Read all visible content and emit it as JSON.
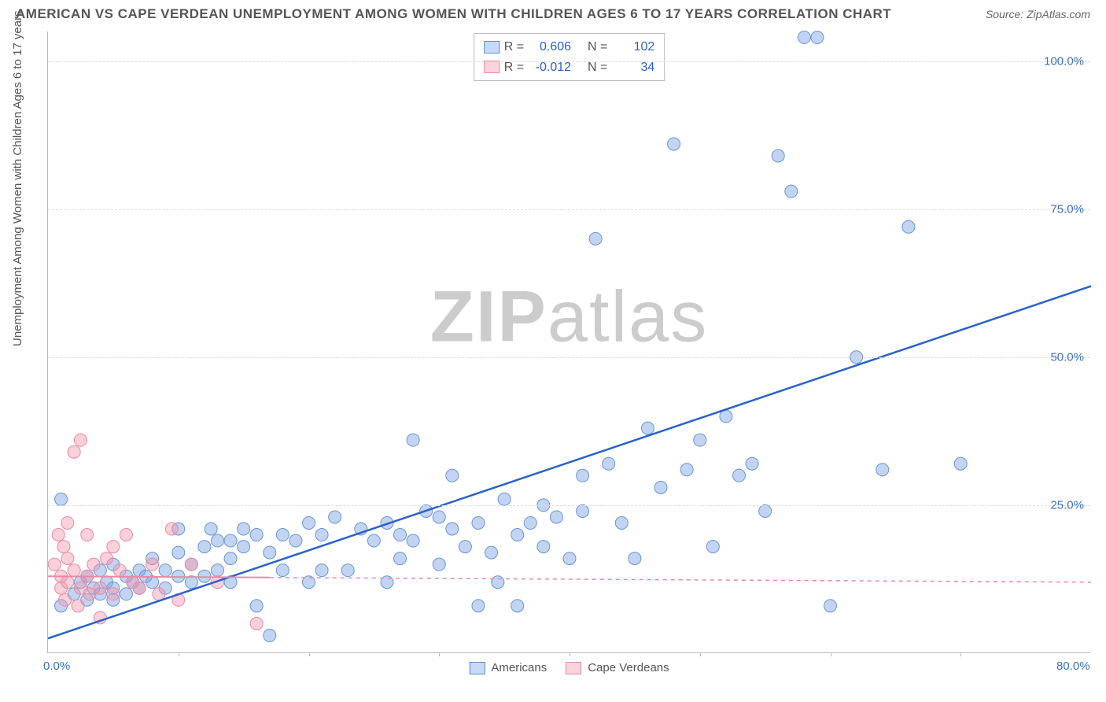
{
  "title": "AMERICAN VS CAPE VERDEAN UNEMPLOYMENT AMONG WOMEN WITH CHILDREN AGES 6 TO 17 YEARS CORRELATION CHART",
  "source_label": "Source: ",
  "source_value": "ZipAtlas.com",
  "y_axis_label": "Unemployment Among Women with Children Ages 6 to 17 years",
  "watermark_a": "ZIP",
  "watermark_b": "atlas",
  "chart": {
    "type": "scatter",
    "xlim": [
      0,
      80
    ],
    "ylim": [
      0,
      105
    ],
    "x_ticks": [
      0,
      80
    ],
    "x_tick_labels": [
      "0.0%",
      "80.0%"
    ],
    "x_minor_ticks": [
      10,
      20,
      30,
      40,
      50,
      60,
      70
    ],
    "y_ticks": [
      25,
      50,
      75,
      100
    ],
    "y_tick_labels": [
      "25.0%",
      "50.0%",
      "75.0%",
      "100.0%"
    ],
    "background_color": "#ffffff",
    "grid_color": "#dddddd",
    "axis_color": "#bbbbbb",
    "tick_label_color": "#3b6fc7",
    "series": [
      {
        "name": "Americans",
        "color_fill": "rgba(120,160,225,0.45)",
        "color_stroke": "#6a95d6",
        "marker_radius": 8,
        "regression": {
          "x1": 0,
          "y1": 2.5,
          "x2": 80,
          "y2": 62,
          "color": "#2a62c9",
          "width": 2.5,
          "dash": "none"
        },
        "R": "0.606",
        "N": "102",
        "points": [
          [
            1,
            8
          ],
          [
            1,
            26
          ],
          [
            2,
            10
          ],
          [
            2.5,
            12
          ],
          [
            3,
            9
          ],
          [
            3,
            13
          ],
          [
            3.5,
            11
          ],
          [
            4,
            10
          ],
          [
            4,
            14
          ],
          [
            4.5,
            12
          ],
          [
            5,
            9
          ],
          [
            5,
            11
          ],
          [
            5,
            15
          ],
          [
            6,
            10
          ],
          [
            6,
            13
          ],
          [
            6.5,
            12
          ],
          [
            7,
            11
          ],
          [
            7,
            14
          ],
          [
            7.5,
            13
          ],
          [
            8,
            12
          ],
          [
            8,
            16
          ],
          [
            9,
            11
          ],
          [
            9,
            14
          ],
          [
            10,
            13
          ],
          [
            10,
            17
          ],
          [
            10,
            21
          ],
          [
            11,
            12
          ],
          [
            11,
            15
          ],
          [
            12,
            13
          ],
          [
            12,
            18
          ],
          [
            12.5,
            21
          ],
          [
            13,
            14
          ],
          [
            13,
            19
          ],
          [
            14,
            12
          ],
          [
            14,
            16
          ],
          [
            14,
            19
          ],
          [
            15,
            18
          ],
          [
            15,
            21
          ],
          [
            16,
            20
          ],
          [
            16,
            8
          ],
          [
            17,
            3
          ],
          [
            17,
            17
          ],
          [
            18,
            14
          ],
          [
            18,
            20
          ],
          [
            19,
            19
          ],
          [
            20,
            22
          ],
          [
            20,
            12
          ],
          [
            21,
            14
          ],
          [
            21,
            20
          ],
          [
            22,
            23
          ],
          [
            23,
            14
          ],
          [
            24,
            21
          ],
          [
            25,
            19
          ],
          [
            26,
            12
          ],
          [
            26,
            22
          ],
          [
            27,
            16
          ],
          [
            27,
            20
          ],
          [
            28,
            36
          ],
          [
            28,
            19
          ],
          [
            29,
            24
          ],
          [
            30,
            23
          ],
          [
            30,
            15
          ],
          [
            31,
            21
          ],
          [
            31,
            30
          ],
          [
            32,
            18
          ],
          [
            33,
            8
          ],
          [
            33,
            22
          ],
          [
            34,
            17
          ],
          [
            34.5,
            12
          ],
          [
            35,
            26
          ],
          [
            36,
            8
          ],
          [
            36,
            20
          ],
          [
            37,
            22
          ],
          [
            38,
            18
          ],
          [
            38,
            25
          ],
          [
            39,
            23
          ],
          [
            40,
            16
          ],
          [
            41,
            30
          ],
          [
            41,
            24
          ],
          [
            42,
            70
          ],
          [
            43,
            32
          ],
          [
            44,
            22
          ],
          [
            45,
            16
          ],
          [
            46,
            38
          ],
          [
            47,
            28
          ],
          [
            48,
            86
          ],
          [
            49,
            31
          ],
          [
            50,
            36
          ],
          [
            51,
            18
          ],
          [
            52,
            40
          ],
          [
            53,
            30
          ],
          [
            54,
            32
          ],
          [
            55,
            24
          ],
          [
            56,
            84
          ],
          [
            57,
            78
          ],
          [
            58,
            104
          ],
          [
            59,
            104
          ],
          [
            60,
            8
          ],
          [
            62,
            50
          ],
          [
            64,
            31
          ],
          [
            66,
            72
          ],
          [
            70,
            32
          ]
        ]
      },
      {
        "name": "Cape Verdeans",
        "color_fill": "rgba(245,150,175,0.45)",
        "color_stroke": "#e88aa5",
        "marker_radius": 8,
        "regression": {
          "x1": 0,
          "y1": 13,
          "x2": 80,
          "y2": 12,
          "color": "#e88aa5",
          "width": 1.5,
          "dash": "5,5",
          "solid_until_x": 17
        },
        "R": "-0.012",
        "N": "34",
        "points": [
          [
            0.5,
            15
          ],
          [
            0.8,
            20
          ],
          [
            1,
            11
          ],
          [
            1,
            13
          ],
          [
            1.2,
            18
          ],
          [
            1.3,
            9
          ],
          [
            1.5,
            12
          ],
          [
            1.5,
            16
          ],
          [
            1.5,
            22
          ],
          [
            2,
            14
          ],
          [
            2,
            34
          ],
          [
            2.3,
            8
          ],
          [
            2.5,
            36
          ],
          [
            2.5,
            11
          ],
          [
            3,
            20
          ],
          [
            3,
            13
          ],
          [
            3.2,
            10
          ],
          [
            3.5,
            15
          ],
          [
            4,
            6
          ],
          [
            4,
            11
          ],
          [
            4.5,
            16
          ],
          [
            5,
            18
          ],
          [
            5,
            10
          ],
          [
            5.5,
            14
          ],
          [
            6,
            20
          ],
          [
            6.5,
            12
          ],
          [
            7,
            11
          ],
          [
            8,
            15
          ],
          [
            8.5,
            10
          ],
          [
            9.5,
            21
          ],
          [
            10,
            9
          ],
          [
            11,
            15
          ],
          [
            13,
            12
          ],
          [
            16,
            5
          ]
        ]
      }
    ]
  },
  "legend_top": {
    "rows": [
      {
        "sw": "blue",
        "r_label": "R =",
        "r_val": "0.606",
        "n_label": "N =",
        "n_val": "102"
      },
      {
        "sw": "pink",
        "r_label": "R =",
        "r_val": "-0.012",
        "n_label": "N =",
        "n_val": "34"
      }
    ]
  },
  "legend_bottom": {
    "items": [
      {
        "sw": "blue",
        "label": "Americans"
      },
      {
        "sw": "pink",
        "label": "Cape Verdeans"
      }
    ]
  }
}
